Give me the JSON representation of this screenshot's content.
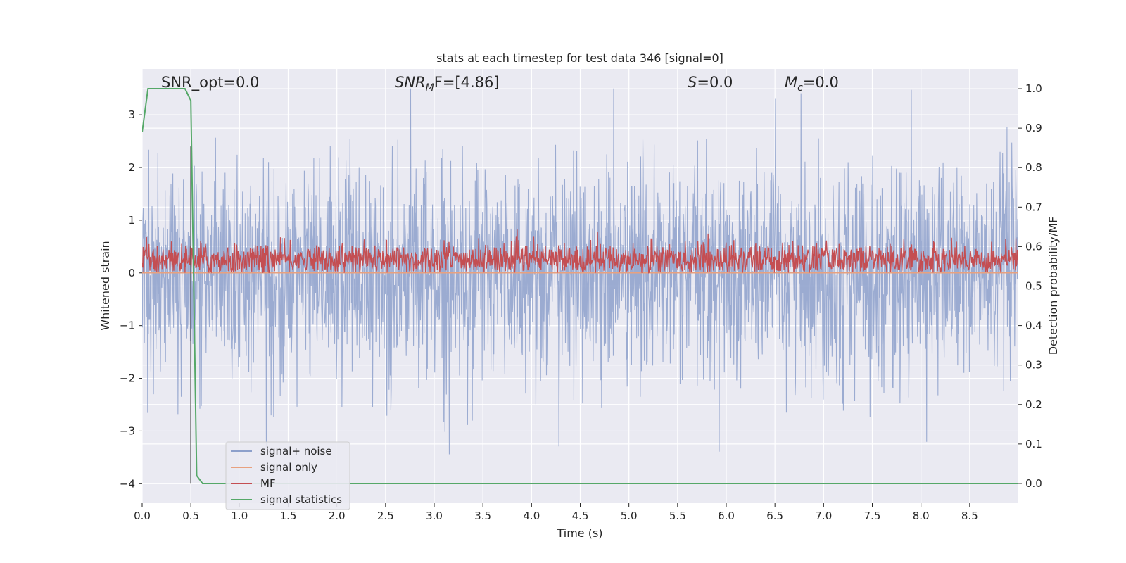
{
  "chart_data": {
    "type": "line",
    "title": "stats at each timestep for test data 346 [signal=0]",
    "xlabel": "Time (s)",
    "ylabel": "Whitened strain",
    "y2label": "Detection probability/MF",
    "xlim": [
      0.0,
      9.0
    ],
    "ylim": [
      -4.37,
      3.87
    ],
    "y2lim": [
      -0.05,
      1.05
    ],
    "xticks": [
      "0.0",
      "0.5",
      "1.0",
      "1.5",
      "2.0",
      "2.5",
      "3.0",
      "3.5",
      "4.0",
      "4.5",
      "5.0",
      "5.5",
      "6.0",
      "6.5",
      "7.0",
      "7.5",
      "8.0",
      "8.5"
    ],
    "yticks": [
      "3",
      "2",
      "1",
      "0",
      "−1",
      "−2",
      "−3",
      "−4"
    ],
    "y2ticks": [
      "1.0",
      "0.9",
      "0.8",
      "0.7",
      "0.6",
      "0.5",
      "0.4",
      "0.3",
      "0.2",
      "0.1",
      "0.0"
    ],
    "grid": true,
    "legend_position": "lower-left",
    "annotations": {
      "snr_opt": "SNR_opt=0.0",
      "snr_mf_main": "SNR",
      "snr_mf_sub": "M",
      "snr_mf_rest": "F=[4.86]",
      "s_var": "S",
      "s_val": "=0.0",
      "mc_var": "M",
      "mc_sub": "c",
      "mc_val": "=0.0"
    },
    "series": [
      {
        "name": "signal+ noise",
        "color": "#8da0cb",
        "axis": "left",
        "style": "dense noise ~N(0,1)",
        "values": [],
        "range": [
          -3.6,
          3.5
        ]
      },
      {
        "name": "signal only",
        "color": "#e8a17f",
        "axis": "left",
        "values": [
          [
            0.0,
            0.0
          ],
          [
            9.0,
            0.0
          ]
        ]
      },
      {
        "name": "MF",
        "color": "#c44e52",
        "axis": "left",
        "style": "noisy band ~0 to 0.6",
        "values": [],
        "range": [
          0.0,
          0.95
        ]
      },
      {
        "name": "signal statistics",
        "color": "#55a868",
        "axis": "right",
        "x": [
          0.0,
          0.06,
          0.44,
          0.5,
          0.56,
          0.62,
          9.0
        ],
        "values": [
          0.89,
          1.0,
          1.0,
          0.97,
          0.02,
          0.0,
          0.0
        ]
      }
    ],
    "vertical_marker": {
      "x": 0.5,
      "y_from": -4.0,
      "y_to": 2.4,
      "color": "#555555"
    }
  }
}
